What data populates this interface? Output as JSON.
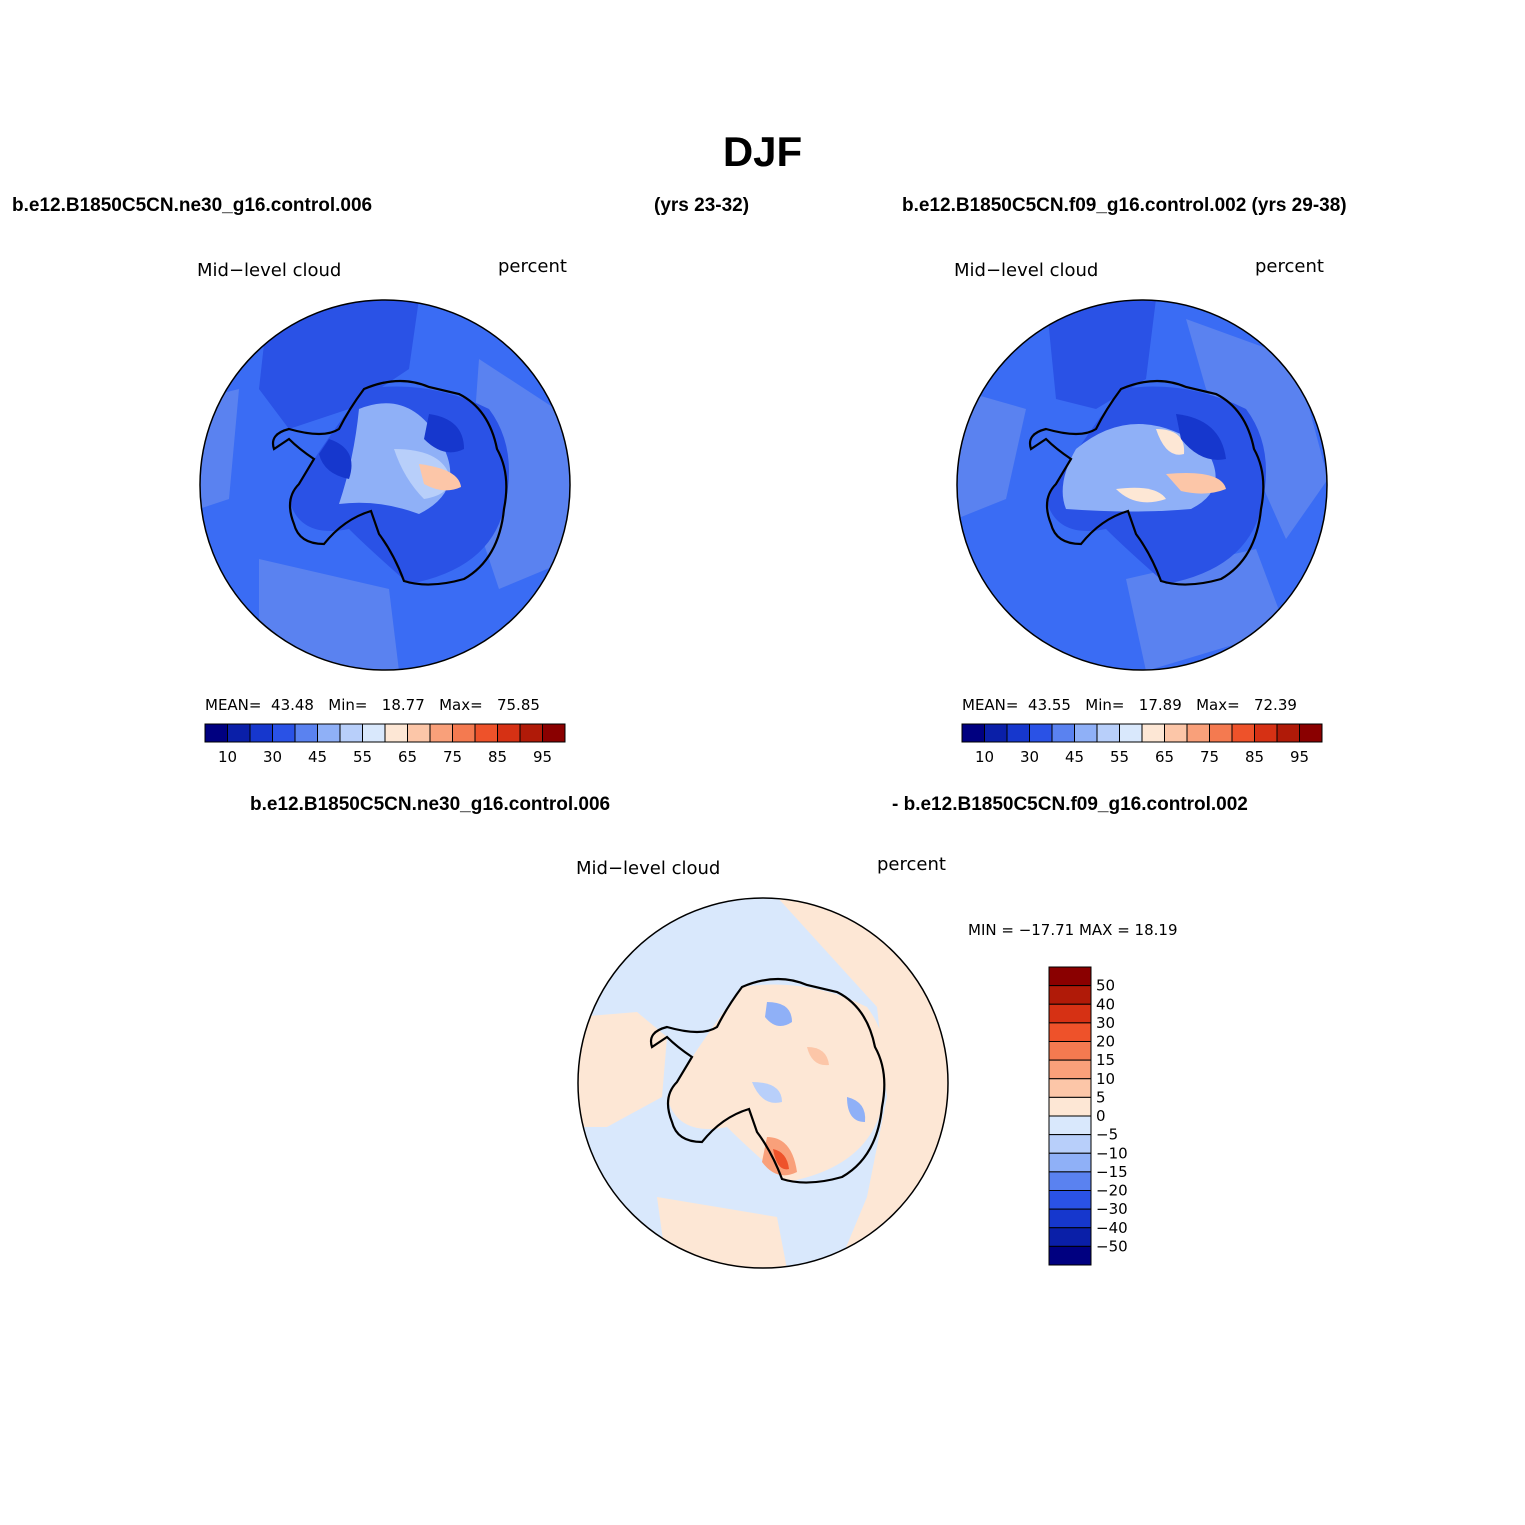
{
  "title": "DJF",
  "header": {
    "case1": "b.e12.B1850C5CN.ne30_g16.control.006",
    "years1": "(yrs 23-32)",
    "case2": "b.e12.B1850C5CN.f09_g16.control.002 (yrs 29-38)",
    "diff_case1": "b.e12.B1850C5CN.ne30_g16.control.006",
    "diff_case2": "- b.e12.B1850C5CN.f09_g16.control.002"
  },
  "panels": [
    {
      "variable": "Mid−level  cloud",
      "units": "percent",
      "stats": {
        "mean_label": "MEAN=",
        "mean": "43.48",
        "min_label": "Min=",
        "min": "18.77",
        "max_label": "Max=",
        "max": "75.85"
      }
    },
    {
      "variable": "Mid−level  cloud",
      "units": "percent",
      "stats": {
        "mean_label": "MEAN=",
        "mean": "43.55",
        "min_label": "Min=",
        "min": "17.89",
        "max_label": "Max=",
        "max": "72.39"
      }
    },
    {
      "variable": "Mid−level  cloud",
      "units": "percent",
      "stats": {
        "text": "MIN = −17.71  MAX =   18.19"
      }
    }
  ],
  "colorbar_abs": {
    "colors": [
      "#000080",
      "#0a1fa8",
      "#1637cd",
      "#2a52e6",
      "#5a82f0",
      "#8fb0f7",
      "#b8cffa",
      "#d9e8fc",
      "#fde7d5",
      "#fcc6a8",
      "#f9a07a",
      "#f47a50",
      "#ee522a",
      "#d63114",
      "#b01a08",
      "#8a0000"
    ],
    "labels": [
      "10",
      "30",
      "45",
      "55",
      "65",
      "75",
      "85",
      "95"
    ]
  },
  "colorbar_diff": {
    "colors": [
      "#000080",
      "#0a1fa8",
      "#1637cd",
      "#2a52e6",
      "#5a82f0",
      "#8fb0f7",
      "#b8cffa",
      "#d9e8fc",
      "#fde7d5",
      "#fcc6a8",
      "#f9a07a",
      "#f47a50",
      "#ee522a",
      "#d63114",
      "#b01a08",
      "#8a0000"
    ],
    "labels": [
      "−50",
      "−40",
      "−30",
      "−20",
      "−15",
      "−10",
      "−5",
      "0",
      "5",
      "10",
      "15",
      "20",
      "30",
      "40",
      "50"
    ]
  },
  "colors": {
    "ocean_abs": "#3a6cf4",
    "ocean_diff": "#d9e8fc",
    "coast": "#000000"
  }
}
